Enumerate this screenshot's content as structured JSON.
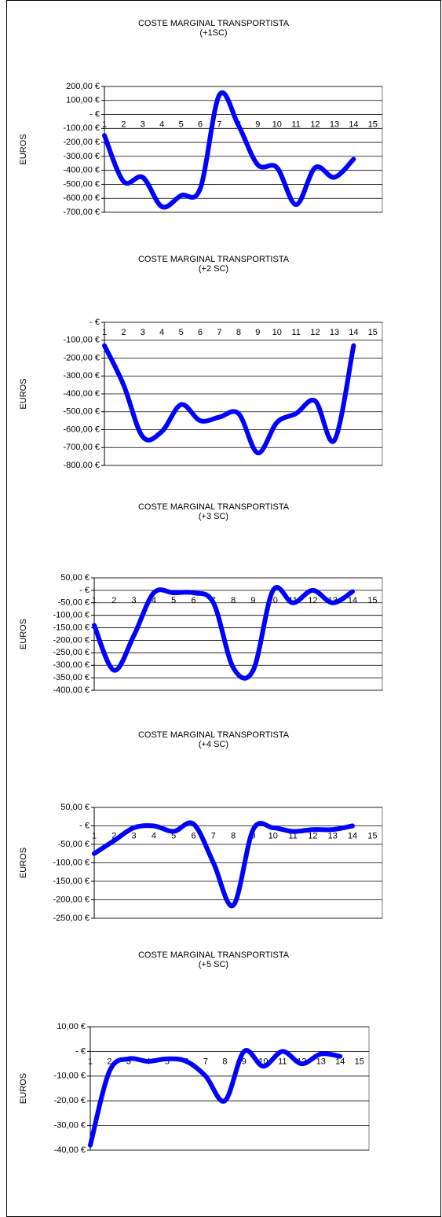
{
  "chart_data": [
    {
      "type": "line",
      "title": "COSTE MARGINAL TRANSPORTISTA",
      "subtitle": "(+1SC)",
      "y_label": "EUROS",
      "categories": [
        "1",
        "2",
        "3",
        "4",
        "5",
        "6",
        "7",
        "8",
        "9",
        "10",
        "11",
        "12",
        "13",
        "14",
        "15"
      ],
      "series": [
        {
          "name": "Coste marginal",
          "color": "#0000ff",
          "values": [
            -150,
            -480,
            -450,
            -660,
            -580,
            -530,
            140,
            -80,
            -360,
            -380,
            -645,
            -380,
            -450,
            -320,
            null
          ]
        }
      ],
      "ylim": [
        -700,
        200
      ],
      "yticks": [
        {
          "value": -700,
          "label": "-700,00 €"
        },
        {
          "value": -600,
          "label": "-600,00 €"
        },
        {
          "value": -500,
          "label": "-500,00 €"
        },
        {
          "value": -400,
          "label": "-400,00 €"
        },
        {
          "value": -300,
          "label": "-300,00 €"
        },
        {
          "value": -200,
          "label": "-200,00 €"
        },
        {
          "value": -100,
          "label": "-100,00 €"
        },
        {
          "value": 0,
          "label": "- €"
        },
        {
          "value": 100,
          "label": "100,00 €"
        },
        {
          "value": 200,
          "label": "200,00 €"
        }
      ],
      "grid": true
    },
    {
      "type": "line",
      "title": "COSTE MARGINAL TRANSPORTISTA",
      "subtitle": "(+2 SC)",
      "y_label": "EUROS",
      "categories": [
        "1",
        "2",
        "3",
        "4",
        "5",
        "6",
        "7",
        "8",
        "9",
        "10",
        "11",
        "12",
        "13",
        "14",
        "15"
      ],
      "series": [
        {
          "name": "Coste marginal",
          "color": "#0000ff",
          "values": [
            -130,
            -350,
            -640,
            -610,
            -460,
            -550,
            -530,
            -510,
            -730,
            -560,
            -510,
            -440,
            -660,
            -130,
            null
          ]
        }
      ],
      "ylim": [
        -800,
        0
      ],
      "yticks": [
        {
          "value": -800,
          "label": "-800,00 €"
        },
        {
          "value": -700,
          "label": "-700,00 €"
        },
        {
          "value": -600,
          "label": "-600,00 €"
        },
        {
          "value": -500,
          "label": "-500,00 €"
        },
        {
          "value": -400,
          "label": "-400,00 €"
        },
        {
          "value": -300,
          "label": "-300,00 €"
        },
        {
          "value": -200,
          "label": "-200,00 €"
        },
        {
          "value": -100,
          "label": "-100,00 €"
        },
        {
          "value": 0,
          "label": "- €"
        }
      ],
      "grid": true
    },
    {
      "type": "line",
      "title": "COSTE MARGINAL TRANSPORTISTA",
      "subtitle": "(+3 SC)",
      "y_label": "EUROS",
      "categories": [
        "1",
        "2",
        "3",
        "4",
        "5",
        "6",
        "7",
        "8",
        "9",
        "10",
        "11",
        "12",
        "13",
        "14",
        "15"
      ],
      "series": [
        {
          "name": "Coste marginal",
          "color": "#0000ff",
          "values": [
            -140,
            -320,
            -180,
            -10,
            -10,
            -10,
            -50,
            -310,
            -320,
            0,
            -50,
            0,
            -50,
            -5,
            null
          ]
        }
      ],
      "ylim": [
        -400,
        50
      ],
      "yticks": [
        {
          "value": -400,
          "label": "-400,00 €"
        },
        {
          "value": -350,
          "label": "-350,00 €"
        },
        {
          "value": -300,
          "label": "-300,00 €"
        },
        {
          "value": -250,
          "label": "-250,00 €"
        },
        {
          "value": -200,
          "label": "-200,00 €"
        },
        {
          "value": -150,
          "label": "-150,00 €"
        },
        {
          "value": -100,
          "label": "-100,00 €"
        },
        {
          "value": -50,
          "label": "-50,00 €"
        },
        {
          "value": 0,
          "label": "- €"
        },
        {
          "value": 50,
          "label": "50,00 €"
        }
      ],
      "grid": true
    },
    {
      "type": "line",
      "title": "COSTE MARGINAL TRANSPORTISTA",
      "subtitle": "(+4 SC)",
      "y_label": "EUROS",
      "categories": [
        "1",
        "2",
        "3",
        "4",
        "5",
        "6",
        "7",
        "8",
        "9",
        "10",
        "11",
        "12",
        "13",
        "14",
        "15"
      ],
      "series": [
        {
          "name": "Coste marginal",
          "color": "#0000ff",
          "values": [
            -75,
            -40,
            -5,
            0,
            -15,
            5,
            -100,
            -215,
            -10,
            -5,
            -15,
            -10,
            -10,
            0,
            null
          ]
        }
      ],
      "ylim": [
        -250,
        50
      ],
      "yticks": [
        {
          "value": -250,
          "label": "-250,00 €"
        },
        {
          "value": -200,
          "label": "-200,00 €"
        },
        {
          "value": -150,
          "label": "-150,00 €"
        },
        {
          "value": -100,
          "label": "-100,00 €"
        },
        {
          "value": -50,
          "label": "-50,00 €"
        },
        {
          "value": 0,
          "label": "- €"
        },
        {
          "value": 50,
          "label": "50,00 €"
        }
      ],
      "grid": true
    },
    {
      "type": "line",
      "title": "COSTE MARGINAL TRANSPORTISTA",
      "subtitle": "(+5 SC)",
      "y_label": "EUROS",
      "categories": [
        "1",
        "2",
        "3",
        "4",
        "5",
        "6",
        "7",
        "8",
        "9",
        "10",
        "11",
        "12",
        "13",
        "14",
        "15"
      ],
      "series": [
        {
          "name": "Coste marginal",
          "color": "#0000ff",
          "values": [
            -38,
            -8,
            -3,
            -4,
            -3,
            -4,
            -10,
            -20,
            0,
            -6,
            0,
            -5,
            -1,
            -2,
            null
          ]
        }
      ],
      "ylim": [
        -40,
        10
      ],
      "yticks": [
        {
          "value": -40,
          "label": "-40,00 €"
        },
        {
          "value": -30,
          "label": "-30,00 €"
        },
        {
          "value": -20,
          "label": "-20,00 €"
        },
        {
          "value": -10,
          "label": "-10,00 €"
        },
        {
          "value": 0,
          "label": "- €"
        },
        {
          "value": 10,
          "label": "10,00 €"
        }
      ],
      "grid": true
    }
  ]
}
